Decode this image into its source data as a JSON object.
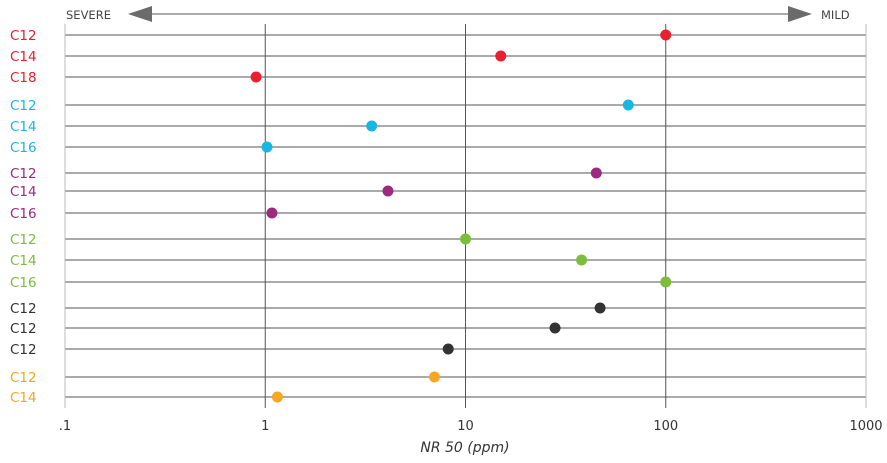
{
  "chart_data": {
    "type": "scatter",
    "xscale": "log",
    "xlim": [
      0.1,
      1000
    ],
    "xticks": [
      ".1",
      "1",
      "10",
      "100",
      "1000"
    ],
    "xlabel": "NR 50 (ppm)",
    "grid": true,
    "scale_labels": {
      "left": "SEVERE",
      "right": "MILD"
    },
    "colors": {
      "red": "#e8202f",
      "cyan": "#17b6e3",
      "purple": "#9c2a7f",
      "green": "#7cbd3c",
      "dark": "#333333",
      "orange": "#f5a623"
    },
    "rows": [
      {
        "label": "C12",
        "x": 100,
        "color": "red"
      },
      {
        "label": "C14",
        "x": 15,
        "color": "red"
      },
      {
        "label": "C18",
        "x": 0.9,
        "color": "red"
      },
      {
        "label": "C12",
        "x": 65,
        "color": "cyan"
      },
      {
        "label": "C14",
        "x": 3.4,
        "color": "cyan"
      },
      {
        "label": "C16",
        "x": 1.02,
        "color": "cyan"
      },
      {
        "label": "C12",
        "x": 45,
        "color": "purple"
      },
      {
        "label": "C14",
        "x": 4.1,
        "color": "purple"
      },
      {
        "label": "C16",
        "x": 1.08,
        "color": "purple"
      },
      {
        "label": "C12",
        "x": 10,
        "color": "green"
      },
      {
        "label": "C14",
        "x": 38,
        "color": "green"
      },
      {
        "label": "C16",
        "x": 100,
        "color": "green"
      },
      {
        "label": "C12",
        "x": 47,
        "color": "dark"
      },
      {
        "label": "C12",
        "x": 28,
        "color": "dark"
      },
      {
        "label": "C12",
        "x": 8.2,
        "color": "dark"
      },
      {
        "label": "C12",
        "x": 7,
        "color": "orange"
      },
      {
        "label": "C14",
        "x": 1.15,
        "color": "orange"
      }
    ]
  }
}
